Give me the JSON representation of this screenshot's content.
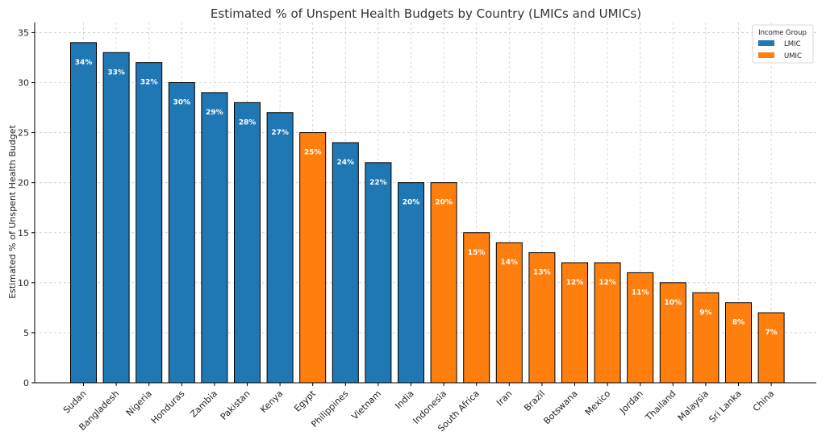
{
  "chart_data": {
    "type": "bar",
    "title": "Estimated % of Unspent Health Budgets by Country (LMICs and UMICs)",
    "xlabel": "",
    "ylabel": "Estimated % of Unspent Health Budget",
    "ylim": [
      0,
      36
    ],
    "yticks": [
      0,
      5,
      10,
      15,
      20,
      25,
      30,
      35
    ],
    "grid": true,
    "legend": {
      "title": "Income Group",
      "placement": "top-right",
      "entries": [
        {
          "name": "LMIC",
          "color": "#1f77b4"
        },
        {
          "name": "UMIC",
          "color": "#ff7f0e"
        }
      ]
    },
    "categories": [
      "Sudan",
      "Bangladesh",
      "Nigeria",
      "Honduras",
      "Zambia",
      "Pakistan",
      "Kenya",
      "Egypt",
      "Philippines",
      "Vietnam",
      "India",
      "Indonesia",
      "South Africa",
      "Iran",
      "Brazil",
      "Botswana",
      "Mexico",
      "Jordan",
      "Thailand",
      "Malaysia",
      "Sri Lanka",
      "China"
    ],
    "values": [
      34,
      33,
      32,
      30,
      29,
      28,
      27,
      25,
      24,
      22,
      20,
      20,
      15,
      14,
      13,
      12,
      12,
      11,
      10,
      9,
      8,
      7
    ],
    "groups": [
      "LMIC",
      "LMIC",
      "LMIC",
      "LMIC",
      "LMIC",
      "LMIC",
      "LMIC",
      "UMIC",
      "LMIC",
      "LMIC",
      "LMIC",
      "UMIC",
      "UMIC",
      "UMIC",
      "UMIC",
      "UMIC",
      "UMIC",
      "UMIC",
      "UMIC",
      "UMIC",
      "UMIC",
      "UMIC"
    ],
    "data_labels": [
      "34%",
      "33%",
      "32%",
      "30%",
      "29%",
      "28%",
      "27%",
      "25%",
      "24%",
      "22%",
      "20%",
      "20%",
      "15%",
      "14%",
      "13%",
      "12%",
      "12%",
      "11%",
      "10%",
      "9%",
      "8%",
      "7%"
    ]
  }
}
